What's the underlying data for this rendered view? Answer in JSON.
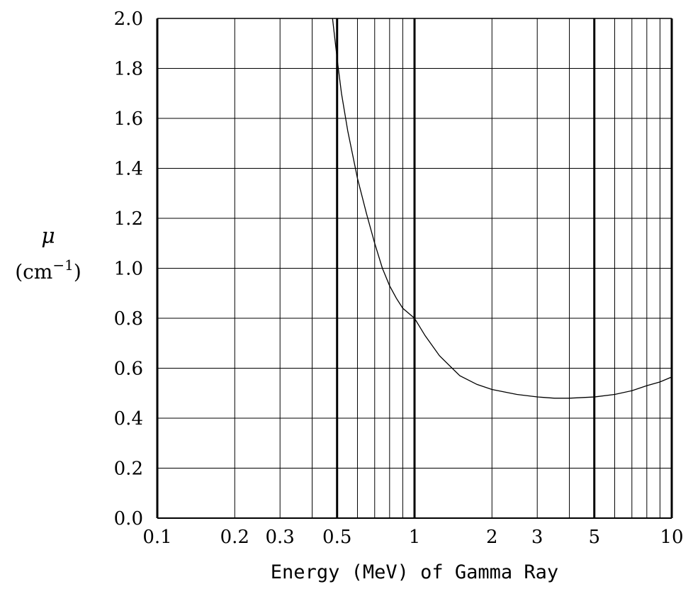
{
  "chart_data": {
    "type": "line",
    "title": "",
    "xlabel": "Energy (MeV) of Gamma Ray",
    "ylabel_symbol": "μ",
    "ylabel_unit_prefix": "(cm",
    "ylabel_unit_exp": "−1",
    "ylabel_unit_suffix": ")",
    "x_scale": "log",
    "xlim": [
      0.1,
      10
    ],
    "ylim": [
      0.0,
      2.0
    ],
    "grid": true,
    "x_ticks": [
      0.1,
      0.2,
      0.3,
      0.5,
      1,
      2,
      3,
      5,
      10
    ],
    "x_tick_labels": [
      "0.1",
      "0.2",
      "0.3",
      "0.5",
      "1",
      "2",
      "3",
      "5",
      "10"
    ],
    "y_ticks": [
      0.0,
      0.2,
      0.4,
      0.6,
      0.8,
      1.0,
      1.2,
      1.4,
      1.6,
      1.8,
      2.0
    ],
    "y_tick_labels": [
      "0.0",
      "0.2",
      "0.4",
      "0.6",
      "0.8",
      "1.0",
      "1.2",
      "1.4",
      "1.6",
      "1.8",
      "2.0"
    ],
    "series": [
      {
        "x": [
          0.48,
          0.5,
          0.52,
          0.55,
          0.6,
          0.65,
          0.7,
          0.75,
          0.8,
          0.85,
          0.9,
          1.0,
          1.1,
          1.25,
          1.5,
          1.75,
          2.0,
          2.5,
          3.0,
          3.5,
          4.0,
          5.0,
          6.0,
          7.0,
          8.0,
          9.0,
          10.0
        ],
        "y": [
          2.0,
          1.84,
          1.7,
          1.55,
          1.36,
          1.22,
          1.1,
          1.0,
          0.93,
          0.88,
          0.84,
          0.8,
          0.73,
          0.65,
          0.57,
          0.535,
          0.515,
          0.495,
          0.485,
          0.48,
          0.48,
          0.485,
          0.495,
          0.51,
          0.53,
          0.545,
          0.565
        ]
      }
    ]
  }
}
